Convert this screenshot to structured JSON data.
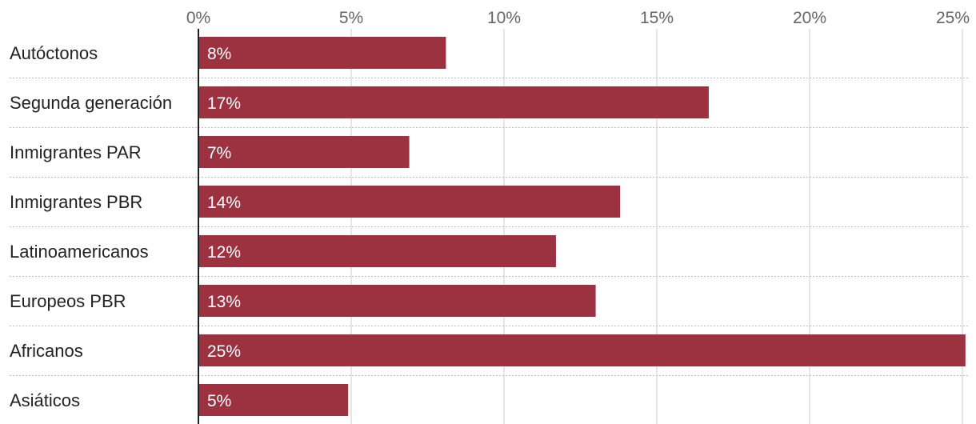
{
  "chart_data": {
    "type": "bar",
    "orientation": "horizontal",
    "title": "",
    "xlabel": "",
    "ylabel": "",
    "categories": [
      "Autóctonos",
      "Segunda generación",
      "Inmigrantes PAR",
      "Inmigrantes PBR",
      "Latinoamericanos",
      "Europeos PBR",
      "Africanos",
      "Asiáticos"
    ],
    "values": [
      8.1,
      16.7,
      6.9,
      13.8,
      11.7,
      13.0,
      25.1,
      4.9
    ],
    "data_labels": [
      "8%",
      "17%",
      "7%",
      "14%",
      "12%",
      "13%",
      "25%",
      "5%"
    ],
    "xlim": [
      0,
      25
    ],
    "xticks": [
      0,
      5,
      10,
      15,
      20,
      25
    ],
    "xtick_labels": [
      "0%",
      "5%",
      "10%",
      "15%",
      "20%",
      "25%"
    ],
    "x_axis_position": "top",
    "grid": true,
    "legend": "none",
    "bar_color": "#9c3140"
  }
}
